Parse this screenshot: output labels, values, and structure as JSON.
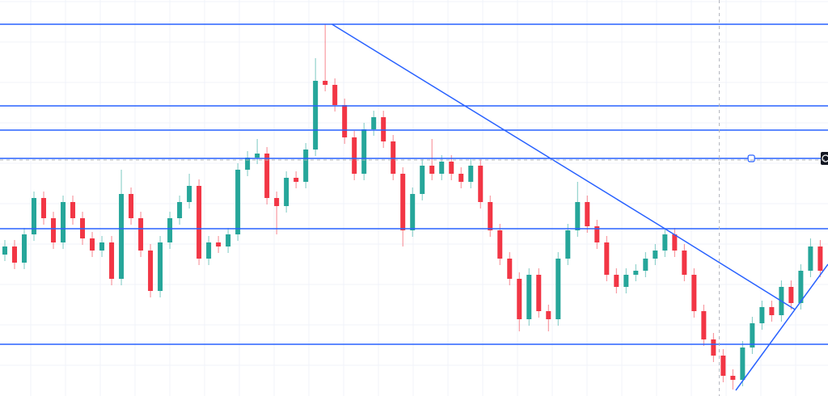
{
  "chart_data": {
    "type": "candlestick",
    "title": "",
    "xlabel": "",
    "ylabel": "",
    "grid": true,
    "xlim": [
      -0.5,
      84.8
    ],
    "ylim": [
      0,
      490
    ],
    "colors": {
      "up": "#26a69a",
      "down": "#f23645",
      "drawing": "#2962ff",
      "grid": "#f0f3fa",
      "crosshair": "#b2b5be",
      "label_bg": "#131722"
    },
    "open": [
      175,
      185,
      165,
      200,
      245,
      220,
      190,
      240,
      220,
      195,
      180,
      190,
      145,
      250,
      220,
      180,
      130,
      190,
      220,
      240,
      260,
      170,
      190,
      185,
      200,
      280,
      295,
      300,
      245,
      235,
      270,
      265,
      305,
      390,
      385,
      360,
      320,
      275,
      330,
      345,
      315,
      275,
      205,
      250,
      285,
      275,
      290,
      275,
      265,
      285,
      240,
      205,
      170,
      145,
      95,
      150,
      105,
      95,
      170,
      205,
      240,
      210,
      190,
      150,
      135,
      150,
      155,
      170,
      180,
      200,
      180,
      150,
      105,
      70,
      50,
      25,
      20,
      60,
      90,
      110,
      100,
      135,
      115,
      155,
      185
    ],
    "high": [
      193,
      193,
      208,
      253,
      253,
      228,
      248,
      248,
      228,
      203,
      198,
      198,
      280,
      258,
      228,
      188,
      198,
      228,
      248,
      275,
      268,
      198,
      198,
      208,
      288,
      303,
      318,
      308,
      253,
      278,
      278,
      313,
      418,
      460,
      393,
      368,
      328,
      338,
      353,
      353,
      323,
      283,
      258,
      293,
      318,
      298,
      298,
      283,
      293,
      293,
      248,
      213,
      178,
      153,
      158,
      158,
      113,
      178,
      213,
      265,
      248,
      218,
      198,
      158,
      158,
      163,
      178,
      188,
      208,
      208,
      188,
      158,
      113,
      78,
      58,
      33,
      68,
      98,
      118,
      118,
      143,
      143,
      163,
      195,
      193
    ],
    "low": [
      167,
      157,
      157,
      192,
      212,
      182,
      182,
      212,
      187,
      172,
      172,
      137,
      137,
      212,
      172,
      122,
      122,
      182,
      212,
      232,
      162,
      162,
      177,
      177,
      192,
      272,
      287,
      237,
      200,
      227,
      257,
      257,
      297,
      377,
      352,
      312,
      267,
      267,
      322,
      307,
      267,
      185,
      197,
      242,
      267,
      267,
      267,
      257,
      257,
      232,
      197,
      162,
      137,
      80,
      87,
      97,
      80,
      87,
      162,
      197,
      202,
      182,
      142,
      127,
      127,
      142,
      147,
      162,
      172,
      172,
      142,
      97,
      62,
      42,
      17,
      8,
      12,
      52,
      82,
      92,
      92,
      107,
      107,
      147,
      147
    ],
    "close": [
      185,
      165,
      200,
      245,
      220,
      190,
      240,
      220,
      195,
      180,
      190,
      145,
      250,
      220,
      180,
      130,
      190,
      220,
      240,
      260,
      170,
      190,
      185,
      200,
      280,
      295,
      300,
      245,
      235,
      270,
      265,
      305,
      390,
      385,
      360,
      320,
      275,
      330,
      345,
      315,
      275,
      205,
      250,
      285,
      275,
      290,
      275,
      265,
      285,
      240,
      205,
      170,
      145,
      95,
      150,
      105,
      95,
      170,
      205,
      240,
      210,
      190,
      150,
      135,
      150,
      155,
      170,
      180,
      200,
      180,
      150,
      105,
      70,
      50,
      25,
      20,
      60,
      90,
      110,
      100,
      135,
      115,
      155,
      185,
      155
    ],
    "horizontal_lines": [
      460,
      359,
      329,
      294,
      207,
      64
    ],
    "trend_lines": [
      {
        "from": [
          33.7,
          460
        ],
        "to": [
          68,
          207
        ]
      },
      {
        "from": [
          68,
          207
        ],
        "to": [
          81.4,
          107
        ]
      },
      {
        "from": [
          75.3,
          7
        ],
        "to": [
          84.8,
          163
        ]
      }
    ],
    "crosshair": {
      "x": 73.6,
      "y": 292
    },
    "selected_line_handle": [
      76.9,
      294
    ]
  }
}
